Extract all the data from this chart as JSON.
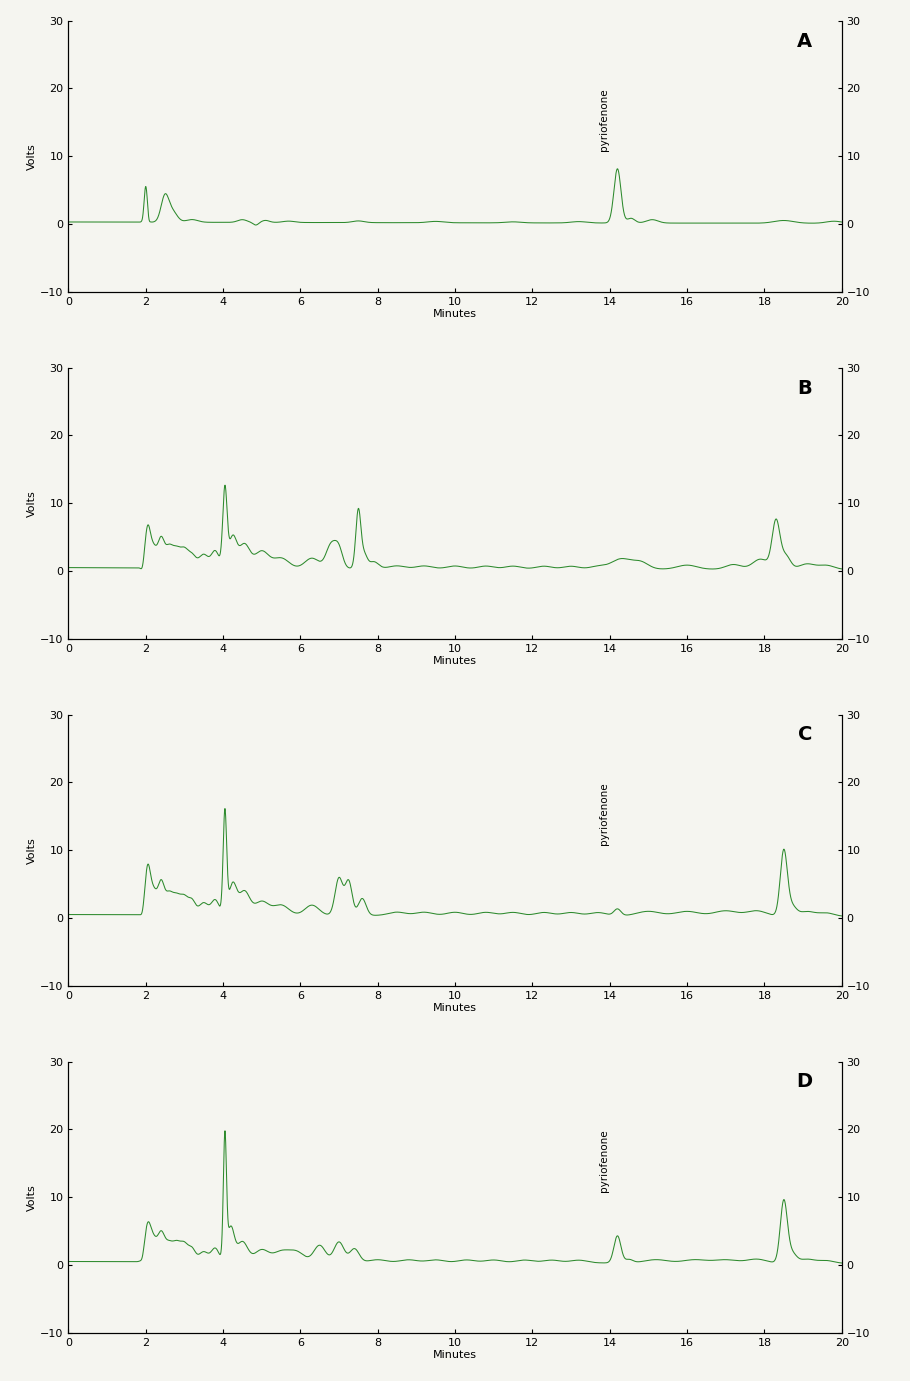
{
  "line_color": "#2d8a2d",
  "background_color": "#f5f5f0",
  "ylim": [
    -10,
    30
  ],
  "xlim": [
    0,
    20
  ],
  "yticks": [
    -10,
    0,
    10,
    20,
    30
  ],
  "xticks": [
    0,
    2,
    4,
    6,
    8,
    10,
    12,
    14,
    16,
    18,
    20
  ],
  "ylabel": "Volts",
  "xlabel": "Minutes",
  "panels": [
    "A",
    "B",
    "C",
    "D"
  ],
  "panel_label_fontsize": 14,
  "axis_label_fontsize": 8,
  "tick_fontsize": 8,
  "annotation_text": "pyriofenone",
  "annotation_fontsize": 7.5
}
